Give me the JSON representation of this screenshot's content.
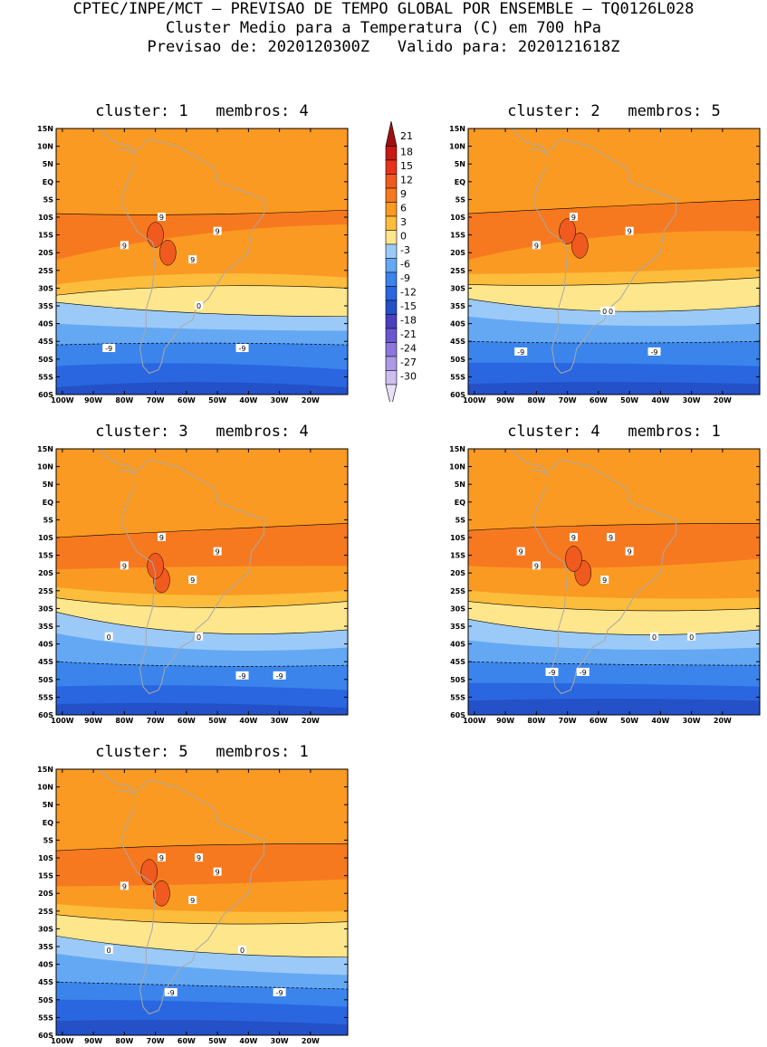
{
  "header": {
    "line1": "CPTEC/INPE/MCT — PREVISAO DE TEMPO GLOBAL POR ENSEMBLE — TQ0126L028",
    "line2": "Cluster Medio para a Temperatura (C) em 700 hPa",
    "line3": "Previsao de: 2020120300Z   Valido para: 2020121618Z"
  },
  "axes": {
    "lat_labels": [
      "15N",
      "10N",
      "5N",
      "EQ",
      "5S",
      "10S",
      "15S",
      "20S",
      "25S",
      "30S",
      "35S",
      "40S",
      "45S",
      "50S",
      "55S",
      "60S"
    ],
    "lon_labels": [
      "100W",
      "90W",
      "80W",
      "70W",
      "60W",
      "50W",
      "40W",
      "30W",
      "20W"
    ]
  },
  "colorbar": {
    "labels": [
      "21",
      "18",
      "15",
      "12",
      "9",
      "6",
      "3",
      "0",
      "-3",
      "-6",
      "-9",
      "-12",
      "-15",
      "-18",
      "-21",
      "-24",
      "-27",
      "-30"
    ],
    "colors": [
      "#a01010",
      "#c81a14",
      "#e8341c",
      "#f05a1e",
      "#f7791f",
      "#fa9a22",
      "#fcbc3c",
      "#fde68c",
      "#9ccaf8",
      "#64a8f4",
      "#3a84ec",
      "#2a66e0",
      "#2450c8",
      "#4a40c0",
      "#6a56d0",
      "#8c78dc",
      "#ac9ae6",
      "#cdbef0",
      "#e8e0f8"
    ]
  },
  "panels": [
    {
      "title": "cluster: 1   membros: 4",
      "contour_labels": [
        "9",
        "9",
        "9",
        "9",
        "0",
        "-9",
        "-9"
      ]
    },
    {
      "title": "cluster: 2   membros: 5",
      "contour_labels": [
        "9",
        "9",
        "9",
        "0",
        "0",
        "-9",
        "-9"
      ]
    },
    {
      "title": "cluster: 3   membros: 4",
      "contour_labels": [
        "9",
        "9",
        "9",
        "9",
        "0",
        "0",
        "-9",
        "-9"
      ]
    },
    {
      "title": "cluster: 4   membros: 1",
      "contour_labels": [
        "9",
        "9",
        "9",
        "9",
        "9",
        "9",
        "0",
        "0",
        "-9",
        "-9"
      ]
    },
    {
      "title": "cluster: 5   membros: 1",
      "contour_labels": [
        "9",
        "9",
        "9",
        "9",
        "9",
        "0",
        "0",
        "-9",
        "-9"
      ]
    }
  ]
}
